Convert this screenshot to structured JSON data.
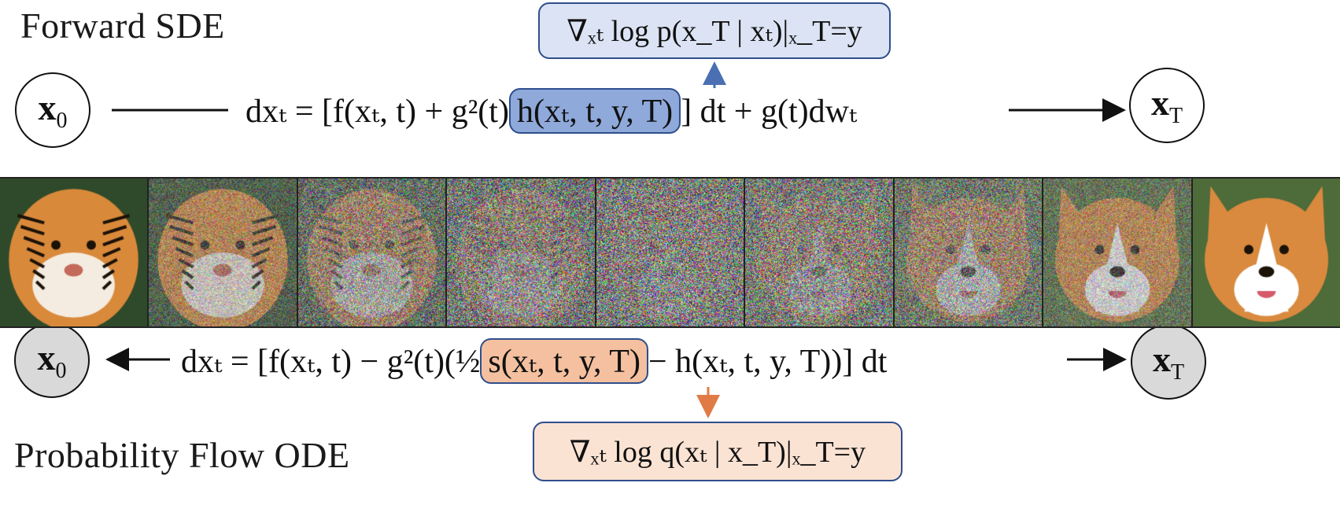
{
  "forward": {
    "title": "Forward SDE",
    "start_node": "x0",
    "end_node": "xT",
    "equation_pre": "dxₜ = [f(xₜ, t) + g²(t)",
    "equation_highlight": "h(xₜ, t, y, T)",
    "equation_post": "] dt + g(t)dwₜ",
    "callout": "∇ₓₜ log p(x_T | xₜ)|ₓ_T=y",
    "callout_color": "#dbe3f4",
    "highlight_color": "#8fa9db"
  },
  "backward": {
    "title": "Probability Flow ODE",
    "start_node": "x0",
    "end_node": "xT",
    "equation_pre": "dxₜ = [f(xₜ, t) − g²(t)(½",
    "equation_highlight": "s(xₜ, t, y, T)",
    "equation_post": "− h(xₜ, t, y, T))] dt",
    "callout": "∇ₓₜ log q(xₜ | x_T)|ₓ_T=y",
    "callout_color": "#fbe3d4",
    "highlight_color": "#f4c09f"
  },
  "image_strip": {
    "frames": 9,
    "source": "tiger",
    "target": "corgi",
    "noise_levels": [
      0,
      0.45,
      0.7,
      0.85,
      0.92,
      0.85,
      0.7,
      0.45,
      0
    ]
  },
  "colors": {
    "arrow_blue": "#4a6fb3",
    "arrow_orange": "#e07b45",
    "border_blue": "#2f4e8c"
  }
}
